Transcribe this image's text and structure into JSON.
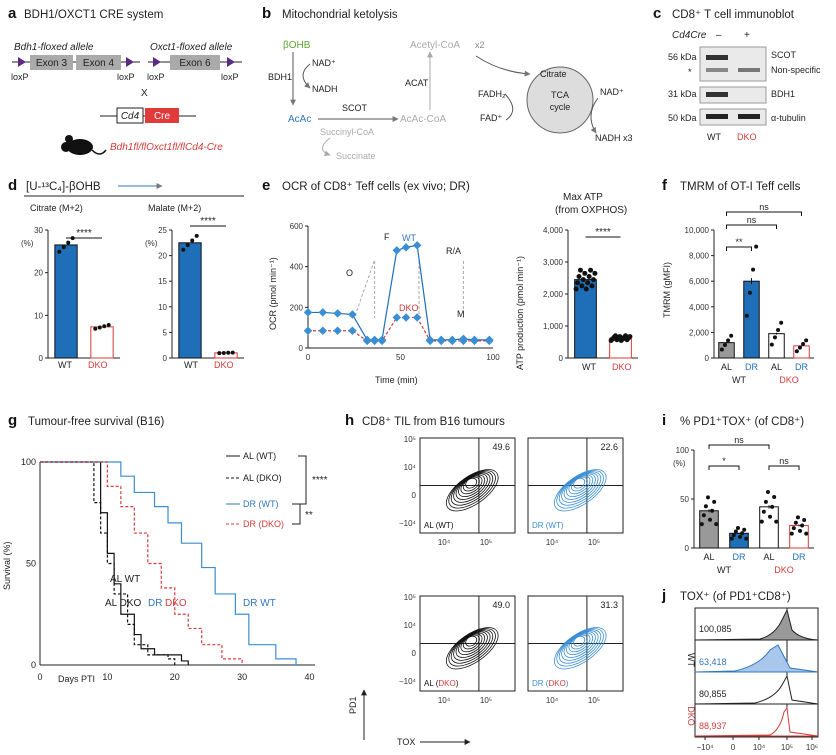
{
  "colors": {
    "wt_blue": "#1f6fb8",
    "dr_blue": "#3a8fd4",
    "dko_red": "#d63b3b",
    "green": "#5aa832",
    "grey": "#999999"
  },
  "panels": {
    "a": {
      "letter": "a",
      "title": "BDH1/OXCT1 CRE system",
      "bdh1_allele": "Bdh1-floxed allele",
      "oxct1_allele": "Oxct1-floxed allele",
      "exon3": "Exon 3",
      "exon4": "Exon 4",
      "exon6": "Exon 6",
      "loxp": "loxP",
      "cross": "X",
      "cd4": "Cd4",
      "cre": "Cre",
      "genotype": "Bdh1fl/flOxct1fl/flCd4-Cre"
    },
    "b": {
      "letter": "b",
      "title": "Mitochondrial ketolysis",
      "bohb": "βOHB",
      "bdh1": "BDH1",
      "nad": "NAD⁺",
      "nadh": "NADH",
      "acac": "AcAc",
      "scot": "SCOT",
      "succcoa": "Succinyl-CoA",
      "succinate": "Succinate",
      "acacoa": "AcAc-CoA",
      "acat": "ACAT",
      "acetylcoa": "Acetyl-CoA",
      "x2": "x2",
      "citrate": "Citrate",
      "tca": "TCA cycle",
      "fadh2": "FADH₂",
      "fad": "FAD⁺",
      "nad2": "NAD⁺",
      "nadh3": "NADH x3"
    },
    "c": {
      "letter": "c",
      "title": "CD8⁺ T cell immunoblot",
      "cd4cre": "Cd4Cre",
      "minus": "–",
      "plus": "+",
      "kda56": "56 kDa",
      "star": "*",
      "kda31": "31 kDa",
      "kda50": "50 kDa",
      "scot": "SCOT",
      "nonspecific": "Non-specific",
      "bdh1": "BDH1",
      "tubulin": "α-tubulin",
      "wt": "WT",
      "dko": "DKO"
    },
    "d": {
      "letter": "d",
      "title": "[U-¹³C₄]-βOHB",
      "citrate_label": "Citrate (M+2)",
      "malate_label": "Malate (M+2)",
      "pct": "(%)",
      "sig": "****",
      "citrate_ticks": [
        "0",
        "10",
        "20",
        "30"
      ],
      "malate_ticks": [
        "0",
        "5",
        "10",
        "15",
        "20",
        "25"
      ],
      "wt": "WT",
      "dko": "DKO"
    },
    "e": {
      "letter": "e",
      "title": "OCR of CD8⁺ Teff cells (ex vivo; DR)",
      "ylabel": "OCR (pmol min⁻¹)",
      "xlabel": "Time (min)",
      "yticks": [
        "0",
        "200",
        "400",
        "600"
      ],
      "xticks": [
        "0",
        "50",
        "100"
      ],
      "o": "O",
      "f": "F",
      "ra": "R/A",
      "m": "M",
      "wt": "WT",
      "dko": "DKO",
      "max_title1": "Max ATP",
      "max_title2": "(from OXPHOS)",
      "atp_ylabel": "ATP production (pmol min⁻¹)",
      "atp_ticks": [
        "0",
        "1,000",
        "2,000",
        "3,000",
        "4,000"
      ],
      "sig": "****"
    },
    "f": {
      "letter": "f",
      "title": "TMRM of OT-I Teff cells",
      "ylabel": "TMRM (gMFI)",
      "yticks": [
        "0",
        "2,000",
        "4,000",
        "6,000",
        "8,000",
        "10,000"
      ],
      "sig1": "**",
      "sig2": "ns",
      "sig3": "ns",
      "al": "AL",
      "dr": "DR",
      "wt": "WT",
      "dko": "DKO"
    },
    "g": {
      "letter": "g",
      "title": "Tumour-free survival (B16)",
      "ylabel": "Survival (%)",
      "xlabel": "Days PTI",
      "yticks": [
        "0",
        "50",
        "100"
      ],
      "xticks": [
        "0",
        "10",
        "20",
        "30",
        "40"
      ],
      "leg_al_wt": "AL (WT)",
      "leg_al_dko": "AL (DKO)",
      "leg_dr_wt": "DR (WT)",
      "leg_dr_dko": "DR (DKO)",
      "sig1": "****",
      "sig2": "**",
      "lab_al_wt": "AL WT",
      "lab_al_dko": "AL DKO",
      "lab_dr_dko": "DR DKO",
      "lab_dr_wt": "DR WT"
    },
    "h": {
      "letter": "h",
      "title": "CD8⁺ TIL from B16 tumours",
      "pd1": "PD1",
      "tox": "TOX",
      "plots": [
        {
          "label": "AL (WT)",
          "value": "49.6"
        },
        {
          "label": "DR (WT)",
          "value": "22.6"
        },
        {
          "label": "AL (DKO)",
          "value": "49.0"
        },
        {
          "label": "DR (DKO)",
          "value": "31.3"
        }
      ],
      "yticks": [
        "10⁵",
        "10⁴",
        "0",
        "−10⁴"
      ],
      "xticks": [
        "10⁴",
        "10⁵"
      ]
    },
    "i": {
      "letter": "i",
      "title": "% PD1⁺TOX⁺ (of CD8⁺)",
      "pct": "(%)",
      "yticks": [
        "0",
        "50",
        "100"
      ],
      "sig1": "ns",
      "sig2": "*",
      "sig3": "ns",
      "al": "AL",
      "dr": "DR",
      "wt": "WT",
      "dko": "DKO"
    },
    "j": {
      "letter": "j",
      "title": "TOX⁺ (of PD1⁺CD8⁺)",
      "wt": "WT",
      "dko": "DKO",
      "v1": "100,085",
      "v2": "63,418",
      "v3": "80,855",
      "v4": "88,937",
      "xticks": [
        "−10⁴",
        "0",
        "10⁴",
        "10⁵",
        "10⁶"
      ]
    }
  },
  "chart_data": [
    {
      "id": "d-citrate",
      "type": "bar",
      "categories": [
        "WT",
        "DKO"
      ],
      "values": [
        26.5,
        7.3
      ],
      "ylim": [
        0,
        30
      ],
      "ylabel": "(%)",
      "title": "Citrate (M+2)"
    },
    {
      "id": "d-malate",
      "type": "bar",
      "categories": [
        "WT",
        "DKO"
      ],
      "values": [
        22.5,
        1.0
      ],
      "ylim": [
        0,
        25
      ],
      "ylabel": "(%)",
      "title": "Malate (M+2)"
    },
    {
      "id": "e-ocr",
      "type": "line",
      "xlim": [
        0,
        100
      ],
      "ylim": [
        0,
        600
      ],
      "xlabel": "Time (min)",
      "ylabel": "OCR (pmol min⁻¹)",
      "x": [
        0,
        8,
        16,
        24,
        32,
        36,
        40,
        48,
        53,
        59,
        66,
        72,
        78,
        84,
        90,
        98
      ],
      "series": [
        {
          "name": "WT",
          "values": [
            175,
            175,
            170,
            165,
            40,
            40,
            40,
            480,
            495,
            505,
            40,
            40,
            40,
            45,
            40,
            40
          ]
        },
        {
          "name": "DKO",
          "values": [
            85,
            85,
            85,
            85,
            35,
            35,
            35,
            150,
            150,
            150,
            35,
            35,
            35,
            35,
            35,
            35
          ]
        }
      ]
    },
    {
      "id": "e-atp",
      "type": "bar",
      "categories": [
        "WT",
        "DKO"
      ],
      "values": [
        2450,
        620
      ],
      "ylim": [
        0,
        4000
      ],
      "ylabel": "ATP production (pmol min⁻¹)"
    },
    {
      "id": "f-tmrm",
      "type": "bar",
      "categories": [
        "AL WT",
        "DR WT",
        "AL DKO",
        "DR DKO"
      ],
      "values": [
        1200,
        6000,
        1900,
        950
      ],
      "ylim": [
        0,
        10000
      ],
      "ylabel": "TMRM (gMFI)"
    },
    {
      "id": "g-survival",
      "type": "line",
      "xlim": [
        0,
        40
      ],
      "ylim": [
        0,
        100
      ],
      "xlabel": "Days PTI",
      "ylabel": "Survival (%)",
      "series": [
        {
          "name": "AL (WT)",
          "x": [
            0,
            9,
            10,
            11,
            12,
            14,
            15,
            17,
            21,
            22
          ],
          "values": [
            100,
            75,
            55,
            40,
            25,
            15,
            8,
            5,
            2,
            0
          ]
        },
        {
          "name": "AL (DKO)",
          "x": [
            0,
            8,
            9,
            10,
            11,
            13,
            14,
            16,
            19,
            20
          ],
          "values": [
            100,
            80,
            65,
            50,
            35,
            20,
            10,
            5,
            3,
            0
          ]
        },
        {
          "name": "DR (WT)",
          "x": [
            0,
            12,
            14,
            17,
            19,
            21,
            24,
            26,
            29,
            31,
            35,
            38
          ],
          "values": [
            100,
            93,
            85,
            78,
            70,
            60,
            48,
            35,
            25,
            10,
            3,
            0
          ]
        },
        {
          "name": "DR (DKO)",
          "x": [
            0,
            10,
            12,
            14,
            16,
            18,
            20,
            22,
            24,
            27,
            30
          ],
          "values": [
            100,
            88,
            78,
            65,
            50,
            38,
            25,
            18,
            10,
            3,
            0
          ]
        }
      ]
    },
    {
      "id": "i-pct",
      "type": "bar",
      "categories": [
        "AL WT",
        "DR WT",
        "AL DKO",
        "DR DKO"
      ],
      "values": [
        38,
        15,
        42,
        23
      ],
      "ylim": [
        0,
        100
      ],
      "ylabel": "(%)"
    }
  ]
}
